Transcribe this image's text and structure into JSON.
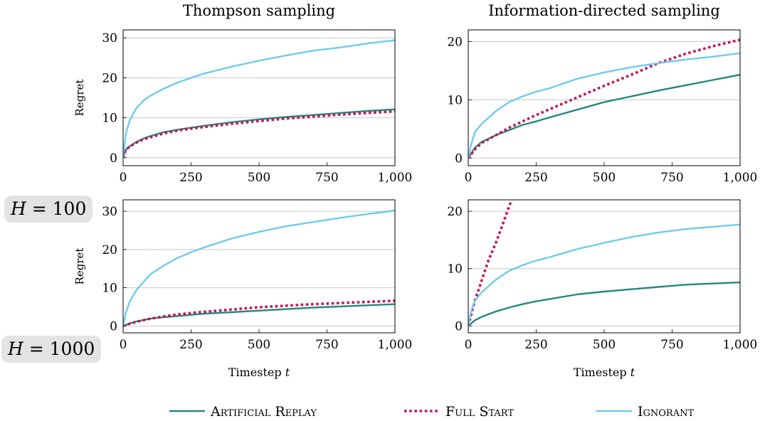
{
  "column_titles": [
    "Thompson sampling",
    "Information-directed sampling"
  ],
  "row_labels": [
    {
      "var": "H",
      "eq": " = ",
      "val": "100"
    },
    {
      "var": "H",
      "eq": " = ",
      "val": "1000"
    }
  ],
  "y_axis_label": "Regret",
  "x_axis_label": {
    "text": "Timestep ",
    "var": "t"
  },
  "legend": [
    {
      "name": "Artificial Replay",
      "color": "#26877d",
      "style": "solid"
    },
    {
      "name": "Full Start",
      "color": "#c0185a",
      "style": "dotted"
    },
    {
      "name": "Ignorant",
      "color": "#6fcbec",
      "style": "solid"
    }
  ],
  "chart_data": [
    {
      "type": "line",
      "title": "Thompson sampling",
      "ylabel": "Regret",
      "xlabel": "",
      "xlim": [
        0,
        1000
      ],
      "ylim": [
        -2,
        32
      ],
      "xticks": [
        0,
        250,
        500,
        750,
        1000
      ],
      "xtick_labels": [
        "0",
        "250",
        "500",
        "750",
        "1,000"
      ],
      "yticks": [
        0,
        10,
        20,
        30
      ],
      "ytick_labels": [
        "0",
        "10",
        "20",
        "30"
      ],
      "grid": "horizontal",
      "series": [
        {
          "name": "Artificial Replay",
          "x": [
            0,
            10,
            25,
            50,
            75,
            100,
            150,
            200,
            250,
            300,
            400,
            500,
            600,
            700,
            800,
            900,
            1000
          ],
          "y": [
            0,
            2.0,
            2.9,
            4.0,
            4.8,
            5.4,
            6.4,
            7.0,
            7.5,
            8.0,
            8.9,
            9.6,
            10.2,
            10.7,
            11.2,
            11.7,
            12.1
          ]
        },
        {
          "name": "Full Start",
          "x": [
            0,
            10,
            25,
            50,
            75,
            100,
            150,
            200,
            250,
            300,
            400,
            500,
            600,
            700,
            800,
            900,
            1000
          ],
          "y": [
            0,
            2.0,
            2.8,
            3.8,
            4.6,
            5.1,
            6.1,
            6.8,
            7.3,
            7.7,
            8.5,
            9.2,
            9.8,
            10.3,
            10.8,
            11.2,
            11.6
          ]
        },
        {
          "name": "Ignorant",
          "x": [
            0,
            10,
            25,
            50,
            75,
            100,
            150,
            200,
            250,
            300,
            400,
            500,
            600,
            700,
            800,
            900,
            1000
          ],
          "y": [
            0,
            6.0,
            9.5,
            12.5,
            14.3,
            15.5,
            17.3,
            18.8,
            20.0,
            21.1,
            22.8,
            24.3,
            25.6,
            26.8,
            27.6,
            28.6,
            29.4
          ]
        }
      ]
    },
    {
      "type": "line",
      "title": "Information-directed sampling",
      "ylabel": "",
      "xlabel": "",
      "xlim": [
        0,
        1000
      ],
      "ylim": [
        -1.3,
        22
      ],
      "xticks": [
        0,
        250,
        500,
        750,
        1000
      ],
      "xtick_labels": [
        "0",
        "250",
        "500",
        "750",
        "1,000"
      ],
      "yticks": [
        0,
        10,
        20
      ],
      "ytick_labels": [
        "0",
        "10",
        "20"
      ],
      "grid": "horizontal",
      "series": [
        {
          "name": "Artificial Replay",
          "x": [
            0,
            25,
            50,
            100,
            150,
            200,
            250,
            300,
            400,
            500,
            600,
            700,
            800,
            900,
            1000
          ],
          "y": [
            0,
            1.8,
            2.8,
            3.9,
            4.8,
            5.7,
            6.3,
            7.0,
            8.3,
            9.6,
            10.6,
            11.6,
            12.5,
            13.4,
            14.3
          ]
        },
        {
          "name": "Full Start",
          "x": [
            0,
            25,
            50,
            100,
            150,
            200,
            250,
            300,
            400,
            500,
            600,
            700,
            800,
            900,
            1000
          ],
          "y": [
            0,
            1.5,
            2.6,
            3.9,
            5.2,
            6.3,
            7.4,
            8.4,
            10.4,
            12.4,
            14.3,
            16.3,
            17.9,
            19.2,
            20.3
          ]
        },
        {
          "name": "Ignorant",
          "x": [
            0,
            10,
            25,
            50,
            100,
            150,
            200,
            250,
            300,
            400,
            500,
            600,
            700,
            800,
            900,
            1000
          ],
          "y": [
            0,
            2.2,
            4.5,
            5.9,
            8.0,
            9.6,
            10.6,
            11.4,
            12.0,
            13.6,
            14.7,
            15.6,
            16.3,
            16.9,
            17.4,
            18.0
          ]
        }
      ]
    },
    {
      "type": "line",
      "title": "",
      "ylabel": "Regret",
      "xlabel": "Timestep t",
      "xlim": [
        0,
        1000
      ],
      "ylim": [
        -1.8,
        33
      ],
      "xticks": [
        0,
        250,
        500,
        750,
        1000
      ],
      "xtick_labels": [
        "0",
        "250",
        "500",
        "750",
        "1,000"
      ],
      "yticks": [
        0,
        10,
        20,
        30
      ],
      "ytick_labels": [
        "0",
        "10",
        "20",
        "30"
      ],
      "grid": "horizontal",
      "series": [
        {
          "name": "Artificial Replay",
          "x": [
            0,
            25,
            50,
            100,
            150,
            200,
            250,
            300,
            400,
            500,
            600,
            700,
            800,
            900,
            1000
          ],
          "y": [
            0,
            0.7,
            1.2,
            1.9,
            2.3,
            2.6,
            2.9,
            3.2,
            3.6,
            4.0,
            4.4,
            4.8,
            5.1,
            5.4,
            5.7
          ]
        },
        {
          "name": "Full Start",
          "x": [
            0,
            25,
            50,
            100,
            150,
            200,
            250,
            300,
            400,
            500,
            600,
            700,
            800,
            900,
            1000
          ],
          "y": [
            0,
            0.6,
            1.1,
            1.9,
            2.5,
            3.0,
            3.4,
            3.7,
            4.3,
            4.9,
            5.3,
            5.7,
            6.0,
            6.3,
            6.6
          ]
        },
        {
          "name": "Ignorant",
          "x": [
            0,
            10,
            25,
            50,
            100,
            150,
            200,
            250,
            300,
            400,
            500,
            600,
            700,
            800,
            900,
            1000
          ],
          "y": [
            0,
            3.5,
            6.5,
            9.5,
            13.5,
            15.8,
            17.8,
            19.3,
            20.6,
            22.9,
            24.6,
            26.1,
            27.2,
            28.3,
            29.3,
            30.2
          ]
        }
      ]
    },
    {
      "type": "line",
      "title": "",
      "ylabel": "",
      "xlabel": "Timestep t",
      "xlim": [
        0,
        1000
      ],
      "ylim": [
        -1.2,
        22
      ],
      "xticks": [
        0,
        250,
        500,
        750,
        1000
      ],
      "xtick_labels": [
        "0",
        "250",
        "500",
        "750",
        "1,000"
      ],
      "yticks": [
        0,
        10,
        20
      ],
      "ytick_labels": [
        "0",
        "10",
        "20"
      ],
      "grid": "horizontal",
      "series": [
        {
          "name": "Artificial Replay",
          "x": [
            0,
            25,
            50,
            100,
            150,
            200,
            250,
            300,
            400,
            500,
            600,
            700,
            800,
            900,
            1000
          ],
          "y": [
            0,
            1.0,
            1.6,
            2.5,
            3.2,
            3.8,
            4.3,
            4.7,
            5.5,
            6.0,
            6.4,
            6.8,
            7.2,
            7.4,
            7.6
          ]
        },
        {
          "name": "Full Start",
          "x": [
            0,
            25,
            50,
            75,
            100,
            125,
            150,
            160
          ],
          "y": [
            0,
            4.5,
            8.0,
            11.5,
            14.3,
            17.5,
            20.8,
            22.0
          ]
        },
        {
          "name": "Ignorant",
          "x": [
            0,
            10,
            25,
            50,
            100,
            150,
            200,
            250,
            300,
            400,
            500,
            600,
            700,
            800,
            900,
            1000
          ],
          "y": [
            0,
            2.5,
            4.4,
            5.9,
            8.0,
            9.6,
            10.6,
            11.4,
            12.0,
            13.4,
            14.5,
            15.5,
            16.3,
            16.9,
            17.3,
            17.7
          ]
        }
      ]
    }
  ]
}
